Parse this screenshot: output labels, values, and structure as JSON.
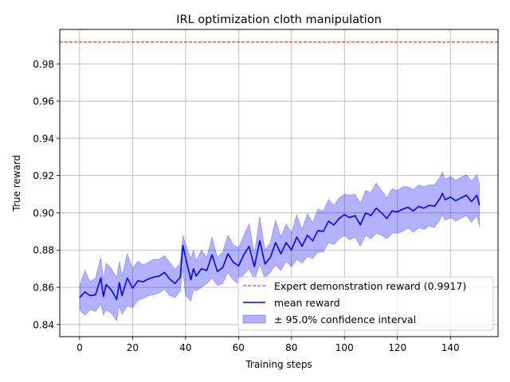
{
  "chart_data": {
    "type": "line",
    "title": "IRL optimization cloth manipulation",
    "xlabel": "Training steps",
    "ylabel": "True reward",
    "xlim": [
      -7.5,
      158
    ],
    "ylim": [
      0.8335,
      0.9985
    ],
    "xticks": [
      0,
      20,
      40,
      60,
      80,
      100,
      120,
      140
    ],
    "yticks": [
      0.84,
      0.86,
      0.88,
      0.9,
      0.92,
      0.94,
      0.96,
      0.98
    ],
    "ytick_labels": [
      "0.84",
      "0.86",
      "0.88",
      "0.90",
      "0.92",
      "0.94",
      "0.96",
      "0.98"
    ],
    "grid": true,
    "legend_position": "lower-right",
    "reference_line": {
      "name": "Expert demonstration reward (0.9917)",
      "value": 0.9917,
      "color": "#ff0000",
      "style": "dashed"
    },
    "series": [
      {
        "name": "mean reward",
        "color": "#0000ff",
        "x": [
          0,
          2,
          4,
          6,
          8,
          9,
          10,
          12,
          14,
          15,
          16,
          18,
          20,
          22,
          24,
          26,
          28,
          30,
          32,
          34,
          36,
          38,
          39,
          40,
          42,
          43,
          44,
          46,
          48,
          50,
          52,
          54,
          56,
          58,
          60,
          62,
          64,
          66,
          68,
          70,
          72,
          74,
          76,
          78,
          80,
          82,
          84,
          86,
          88,
          90,
          92,
          94,
          96,
          98,
          100,
          102,
          104,
          106,
          108,
          110,
          112,
          114,
          116,
          118,
          120,
          122,
          124,
          126,
          128,
          130,
          132,
          134,
          136,
          137,
          138,
          140,
          142,
          144,
          146,
          148,
          150,
          151
        ],
        "values": [
          0.8545,
          0.8575,
          0.8555,
          0.856,
          0.865,
          0.855,
          0.8615,
          0.8585,
          0.8535,
          0.8625,
          0.8555,
          0.865,
          0.8595,
          0.8635,
          0.863,
          0.8645,
          0.8655,
          0.866,
          0.868,
          0.8645,
          0.862,
          0.8655,
          0.8825,
          0.876,
          0.864,
          0.87,
          0.866,
          0.87,
          0.869,
          0.8775,
          0.8685,
          0.8705,
          0.878,
          0.8735,
          0.8715,
          0.8775,
          0.882,
          0.871,
          0.885,
          0.8725,
          0.876,
          0.884,
          0.878,
          0.884,
          0.88,
          0.887,
          0.882,
          0.888,
          0.885,
          0.8905,
          0.89,
          0.8955,
          0.8935,
          0.897,
          0.899,
          0.8975,
          0.8985,
          0.8935,
          0.9,
          0.8985,
          0.9025,
          0.9,
          0.897,
          0.901,
          0.9005,
          0.902,
          0.903,
          0.901,
          0.9035,
          0.9025,
          0.904,
          0.9035,
          0.9075,
          0.9105,
          0.907,
          0.9085,
          0.9065,
          0.908,
          0.9095,
          0.906,
          0.9095,
          0.904
        ]
      }
    ],
    "confidence_band": {
      "name": "± 95.0% confidence interval",
      "color": "#0000ff",
      "lower": [
        0.848,
        0.845,
        0.848,
        0.847,
        0.851,
        0.845,
        0.848,
        0.846,
        0.842,
        0.85,
        0.8455,
        0.85,
        0.849,
        0.853,
        0.854,
        0.8555,
        0.856,
        0.857,
        0.859,
        0.8555,
        0.8545,
        0.858,
        0.87,
        0.8555,
        0.8525,
        0.859,
        0.858,
        0.86,
        0.862,
        0.865,
        0.861,
        0.862,
        0.868,
        0.864,
        0.862,
        0.867,
        0.87,
        0.864,
        0.872,
        0.865,
        0.868,
        0.872,
        0.869,
        0.874,
        0.871,
        0.875,
        0.873,
        0.8765,
        0.8755,
        0.879,
        0.879,
        0.884,
        0.883,
        0.886,
        0.888,
        0.8855,
        0.887,
        0.882,
        0.888,
        0.886,
        0.889,
        0.888,
        0.886,
        0.889,
        0.889,
        0.89,
        0.892,
        0.8895,
        0.892,
        0.891,
        0.893,
        0.892,
        0.896,
        0.899,
        0.896,
        0.8975,
        0.8955,
        0.897,
        0.8985,
        0.895,
        0.8985,
        0.8925
      ],
      "upper": [
        0.861,
        0.869,
        0.863,
        0.865,
        0.876,
        0.864,
        0.873,
        0.87,
        0.865,
        0.874,
        0.866,
        0.878,
        0.87,
        0.874,
        0.872,
        0.8735,
        0.875,
        0.875,
        0.877,
        0.8735,
        0.8695,
        0.873,
        0.888,
        0.883,
        0.8755,
        0.88,
        0.874,
        0.88,
        0.876,
        0.887,
        0.876,
        0.879,
        0.888,
        0.883,
        0.881,
        0.888,
        0.894,
        0.878,
        0.898,
        0.88,
        0.884,
        0.896,
        0.887,
        0.894,
        0.889,
        0.899,
        0.891,
        0.8995,
        0.8945,
        0.902,
        0.901,
        0.907,
        0.904,
        0.908,
        0.91,
        0.9095,
        0.91,
        0.905,
        0.912,
        0.911,
        0.916,
        0.912,
        0.908,
        0.913,
        0.912,
        0.914,
        0.914,
        0.9125,
        0.915,
        0.914,
        0.915,
        0.915,
        0.919,
        0.922,
        0.918,
        0.9195,
        0.9175,
        0.919,
        0.9205,
        0.917,
        0.9205,
        0.9155
      ]
    }
  }
}
